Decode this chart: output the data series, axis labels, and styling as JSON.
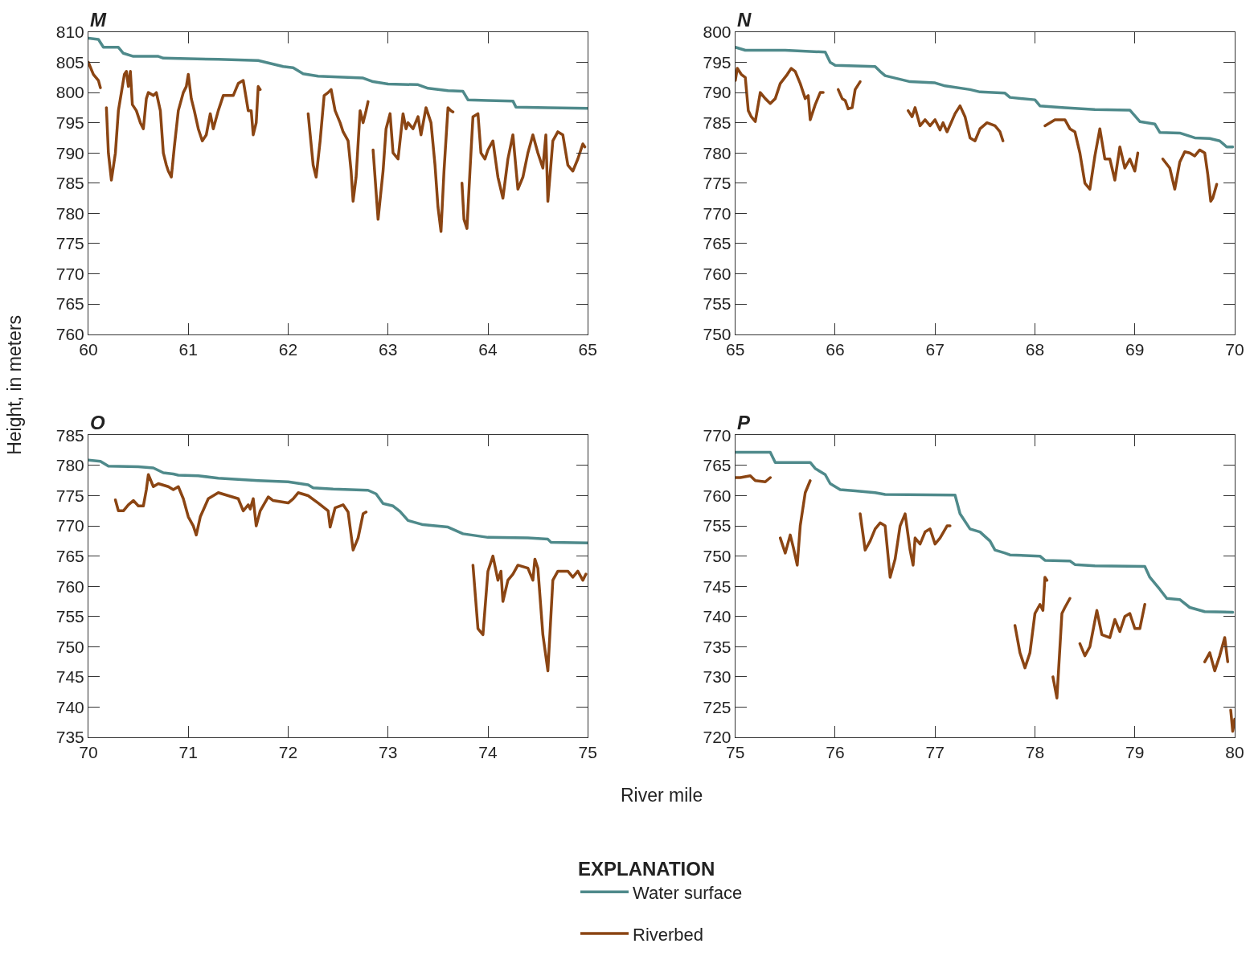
{
  "chart_data": [
    {
      "type": "line",
      "title": "M",
      "ylabel": "Height, in meters",
      "legend_title": "EXPLANATION",
      "legend": "bottom",
      "grid": false,
      "xlim": [
        60,
        65
      ],
      "xticks": [
        60,
        61,
        62,
        63,
        64,
        65
      ],
      "ylim": [
        760,
        810
      ],
      "yticks": [
        760,
        765,
        770,
        775,
        780,
        785,
        790,
        795,
        800,
        805,
        810
      ],
      "series": [
        {
          "name": "Water surface",
          "color": "#4f8a8b",
          "x": [
            60.0,
            60.1,
            60.15,
            60.3,
            60.35,
            60.45,
            60.7,
            60.75,
            61.0,
            61.3,
            61.7,
            61.8,
            61.95,
            62.05,
            62.15,
            62.3,
            62.6,
            62.75,
            62.85,
            63.0,
            63.3,
            63.4,
            63.6,
            63.75,
            63.8,
            64.0,
            64.25,
            64.28,
            64.6,
            65.0
          ],
          "values": [
            809,
            808.8,
            807.5,
            807.5,
            806.5,
            806,
            806,
            805.7,
            805.6,
            805.5,
            805.3,
            804.9,
            804.3,
            804.1,
            803.1,
            802.7,
            802.5,
            802.4,
            801.8,
            801.4,
            801.3,
            800.7,
            800.3,
            800.2,
            798.8,
            798.7,
            798.6,
            797.6,
            797.5,
            797.4
          ]
        },
        {
          "name": "Riverbed",
          "color": "#8b4513",
          "x": [
            60.0,
            60.05,
            60.1,
            60.12,
            60.15,
            60.18,
            60.2,
            60.23,
            60.27,
            60.3,
            60.33,
            60.36,
            60.38,
            60.4,
            60.42,
            60.44,
            60.48,
            60.52,
            60.55,
            60.58,
            60.6,
            60.65,
            60.68,
            60.72,
            60.75,
            60.78,
            60.8,
            60.83,
            60.86,
            60.9,
            60.95,
            60.98,
            61.0,
            61.03,
            61.06,
            61.1,
            61.14,
            61.18,
            61.22,
            61.25,
            61.3,
            61.35,
            61.45,
            61.5,
            61.55,
            61.6,
            61.63,
            61.65,
            61.68,
            61.7,
            61.72,
            62.0,
            62.2,
            62.25,
            62.28,
            62.32,
            62.36,
            62.4,
            62.43,
            62.47,
            62.52,
            62.55,
            62.6,
            62.63,
            62.65,
            62.68,
            62.72,
            62.75,
            62.78,
            62.8,
            62.83,
            62.85,
            62.9,
            62.95,
            62.98,
            63.02,
            63.05,
            63.1,
            63.15,
            63.18,
            63.2,
            63.25,
            63.3,
            63.33,
            63.38,
            63.43,
            63.47,
            63.5,
            63.53,
            63.56,
            63.6,
            63.63,
            63.65,
            63.7,
            63.74,
            63.76,
            63.79,
            63.82,
            63.85,
            63.9,
            63.93,
            63.97,
            64.0,
            64.05,
            64.1,
            64.15,
            64.2,
            64.25,
            64.3,
            64.35,
            64.4,
            64.45,
            64.5,
            64.55,
            64.58,
            64.6,
            64.65,
            64.7,
            64.75,
            64.8,
            64.85,
            64.9,
            64.95,
            64.97
          ],
          "values": [
            805,
            803,
            802,
            800.8,
            null,
            797.5,
            790,
            785.5,
            790,
            797,
            800,
            803,
            803.5,
            801,
            803.5,
            798,
            797,
            795,
            794,
            799,
            800,
            799.5,
            800,
            797,
            790,
            788,
            787,
            786,
            791,
            797,
            800,
            801,
            803,
            799,
            797,
            794,
            792,
            793,
            796.5,
            794,
            797,
            799.5,
            799.5,
            801.5,
            802,
            797,
            797,
            793,
            795,
            801,
            800.5,
            null,
            796.5,
            788,
            786,
            792,
            799.5,
            800,
            800.5,
            797,
            795,
            793.5,
            792,
            787,
            782,
            786,
            797,
            795,
            797,
            798.5,
            null,
            790.5,
            779,
            787,
            794,
            796.5,
            790,
            789,
            796.5,
            794,
            795,
            794,
            796,
            793,
            797.5,
            795,
            788,
            781,
            777,
            787,
            797.5,
            797,
            796.8,
            null,
            785,
            779,
            777.5,
            787,
            796,
            796.5,
            790,
            789,
            790.5,
            792,
            786,
            782.5,
            789,
            793,
            784,
            786,
            790,
            793,
            790,
            787.5,
            793,
            782,
            792,
            793.5,
            793,
            788,
            787,
            789,
            791.5,
            791
          ]
        }
      ]
    },
    {
      "type": "line",
      "title": "N",
      "grid": false,
      "xlim": [
        65,
        70
      ],
      "xticks": [
        65,
        66,
        67,
        68,
        69,
        70
      ],
      "ylim": [
        750,
        800
      ],
      "yticks": [
        750,
        755,
        760,
        765,
        770,
        775,
        780,
        785,
        790,
        795,
        800
      ],
      "series": [
        {
          "name": "Water surface",
          "color": "#4f8a8b",
          "x": [
            65.0,
            65.1,
            65.5,
            65.9,
            65.95,
            66.0,
            66.4,
            66.45,
            66.5,
            66.65,
            66.75,
            67.0,
            67.1,
            67.35,
            67.45,
            67.7,
            67.75,
            68.0,
            68.05,
            68.3,
            68.6,
            68.95,
            69.05,
            69.2,
            69.25,
            69.45,
            69.6,
            69.75,
            69.85,
            69.92,
            69.98
          ],
          "values": [
            797.5,
            797,
            797,
            796.7,
            795,
            794.5,
            794.3,
            793.5,
            792.8,
            792.2,
            791.8,
            791.6,
            791.1,
            790.5,
            790.1,
            789.9,
            789.2,
            788.8,
            787.8,
            787.5,
            787.2,
            787.1,
            785.2,
            784.8,
            783.4,
            783.3,
            782.5,
            782.4,
            782,
            781,
            781
          ]
        },
        {
          "name": "Riverbed",
          "color": "#8b4513",
          "x": [
            65.0,
            65.02,
            65.06,
            65.1,
            65.13,
            65.16,
            65.2,
            65.25,
            65.3,
            65.35,
            65.4,
            65.45,
            65.52,
            65.56,
            65.6,
            65.65,
            65.7,
            65.73,
            65.75,
            65.8,
            65.85,
            65.88,
            65.95,
            66.03,
            66.07,
            66.1,
            66.13,
            66.17,
            66.2,
            66.25,
            66.5,
            66.73,
            66.77,
            66.8,
            66.85,
            66.9,
            66.95,
            67.0,
            67.05,
            67.08,
            67.12,
            67.16,
            67.2,
            67.25,
            67.3,
            67.35,
            67.4,
            67.45,
            67.52,
            67.6,
            67.65,
            67.68,
            67.9,
            68.1,
            68.2,
            68.3,
            68.35,
            68.4,
            68.45,
            68.5,
            68.55,
            68.6,
            68.65,
            68.7,
            68.75,
            68.8,
            68.85,
            68.9,
            68.95,
            69.0,
            69.03,
            69.15,
            69.28,
            69.35,
            69.4,
            69.45,
            69.5,
            69.55,
            69.6,
            69.65,
            69.7,
            69.73,
            69.76,
            69.78,
            69.82
          ],
          "values": [
            792,
            794,
            793,
            792.5,
            787,
            786,
            785.2,
            790,
            789,
            788.2,
            789,
            791.5,
            793,
            794,
            793.5,
            791.5,
            789,
            789.5,
            785.5,
            788,
            790,
            790,
            null,
            790.5,
            789,
            788.7,
            787.3,
            787.5,
            790.5,
            791.8,
            null,
            787,
            786,
            787.5,
            784.5,
            785.5,
            784.5,
            785.5,
            783.8,
            785,
            783.5,
            785,
            786.5,
            787.8,
            786,
            782.5,
            782,
            784,
            785,
            784.5,
            783.5,
            782,
            null,
            784.5,
            785.5,
            785.5,
            784,
            783.5,
            780,
            775,
            774,
            779.5,
            784,
            779,
            779,
            775.5,
            781,
            777.5,
            779,
            777,
            780,
            null,
            779,
            777.5,
            774,
            778.5,
            780.2,
            780,
            779.5,
            780.5,
            780,
            776.5,
            772,
            772.5,
            774.8
          ]
        }
      ]
    },
    {
      "type": "line",
      "title": "O",
      "xlabel": "River mile",
      "grid": false,
      "xlim": [
        70,
        75
      ],
      "xticks": [
        70,
        71,
        72,
        73,
        74,
        75
      ],
      "ylim": [
        735,
        785
      ],
      "yticks": [
        735,
        740,
        745,
        750,
        755,
        760,
        765,
        770,
        775,
        780,
        785
      ],
      "series": [
        {
          "name": "Water surface",
          "color": "#4f8a8b",
          "x": [
            70.0,
            70.12,
            70.2,
            70.5,
            70.65,
            70.75,
            70.85,
            70.9,
            71.1,
            71.3,
            71.5,
            71.7,
            72.0,
            72.2,
            72.25,
            72.45,
            72.8,
            72.88,
            72.95,
            73.05,
            73.12,
            73.2,
            73.35,
            73.6,
            73.75,
            74.0,
            74.4,
            74.6,
            74.63,
            75.0
          ],
          "values": [
            780.9,
            780.7,
            779.9,
            779.8,
            779.6,
            778.8,
            778.6,
            778.4,
            778.3,
            777.9,
            777.7,
            777.5,
            777.3,
            776.8,
            776.3,
            776.1,
            775.9,
            775.3,
            773.7,
            773.3,
            772.4,
            770.9,
            770.2,
            769.8,
            768.7,
            768.1,
            768,
            767.8,
            767.3,
            767.2
          ]
        },
        {
          "name": "Riverbed",
          "color": "#8b4513",
          "x": [
            70.27,
            70.3,
            70.35,
            70.4,
            70.45,
            70.5,
            70.55,
            70.58,
            70.6,
            70.65,
            70.7,
            70.8,
            70.85,
            70.9,
            70.95,
            71.0,
            71.05,
            71.08,
            71.12,
            71.2,
            71.3,
            71.4,
            71.5,
            71.55,
            71.6,
            71.62,
            71.65,
            71.68,
            71.72,
            71.8,
            71.85,
            72.0,
            72.05,
            72.1,
            72.2,
            72.3,
            72.4,
            72.42,
            72.47,
            72.55,
            72.6,
            72.65,
            72.7,
            72.75,
            72.78,
            73.3,
            73.85,
            73.9,
            73.95,
            74.0,
            74.05,
            74.1,
            74.13,
            74.15,
            74.2,
            74.25,
            74.3,
            74.4,
            74.45,
            74.47,
            74.5,
            74.55,
            74.6,
            74.65,
            74.7,
            74.8,
            74.85,
            74.9,
            74.95,
            74.98
          ],
          "values": [
            774.3,
            772.5,
            772.5,
            773.5,
            774.2,
            773.3,
            773.3,
            776,
            778.5,
            776.5,
            777,
            776.5,
            776,
            776.5,
            774.5,
            771.5,
            770,
            768.5,
            771.5,
            774.5,
            775.5,
            775,
            774.5,
            772.5,
            773.5,
            772.8,
            774.5,
            770,
            772.5,
            774.8,
            774.2,
            773.8,
            774.5,
            775.5,
            775,
            773.8,
            772.5,
            769.8,
            773,
            773.5,
            772.3,
            766,
            768,
            772,
            772.3,
            null,
            763.5,
            753,
            752,
            762.5,
            765,
            761,
            762.5,
            757.5,
            761,
            762,
            763.5,
            763,
            761,
            764.5,
            763,
            752,
            746,
            761,
            762.5,
            762.5,
            761.5,
            762.5,
            761,
            762
          ]
        }
      ]
    },
    {
      "type": "line",
      "title": "P",
      "grid": false,
      "xlim": [
        75,
        80
      ],
      "xticks": [
        75,
        76,
        77,
        78,
        79,
        80
      ],
      "ylim": [
        720,
        770
      ],
      "yticks": [
        720,
        725,
        730,
        735,
        740,
        745,
        750,
        755,
        760,
        765,
        770
      ],
      "series": [
        {
          "name": "Water surface",
          "color": "#4f8a8b",
          "x": [
            75.0,
            75.35,
            75.4,
            75.75,
            75.8,
            75.9,
            75.95,
            76.05,
            76.2,
            76.4,
            76.5,
            77.2,
            77.25,
            77.35,
            77.45,
            77.55,
            77.6,
            77.7,
            77.75,
            78.05,
            78.1,
            78.35,
            78.4,
            78.6,
            79.1,
            79.15,
            79.25,
            79.32,
            79.45,
            79.55,
            79.7,
            79.98
          ],
          "values": [
            767.2,
            767.2,
            765.5,
            765.5,
            764.5,
            763.5,
            762,
            761,
            760.8,
            760.5,
            760.2,
            760.1,
            757,
            754.5,
            754,
            752.5,
            751,
            750.5,
            750.2,
            750,
            749.3,
            749.2,
            748.6,
            748.4,
            748.3,
            746.5,
            744.5,
            743,
            742.8,
            741.5,
            740.8,
            740.7
          ]
        },
        {
          "name": "Riverbed",
          "color": "#8b4513",
          "x": [
            75.0,
            75.05,
            75.15,
            75.2,
            75.3,
            75.35,
            75.4,
            75.45,
            75.5,
            75.55,
            75.58,
            75.62,
            75.65,
            75.7,
            75.75,
            76.0,
            76.25,
            76.3,
            76.35,
            76.4,
            76.45,
            76.5,
            76.55,
            76.6,
            76.65,
            76.7,
            76.75,
            76.78,
            76.8,
            76.85,
            76.9,
            76.95,
            77.0,
            77.05,
            77.12,
            77.15,
            77.5,
            77.8,
            77.85,
            77.9,
            77.95,
            78.0,
            78.05,
            78.08,
            78.1,
            78.12,
            78.15,
            78.18,
            78.22,
            78.27,
            78.3,
            78.35,
            78.4,
            78.45,
            78.5,
            78.55,
            78.62,
            78.67,
            78.75,
            78.8,
            78.85,
            78.9,
            78.95,
            79.0,
            79.05,
            79.1,
            79.4,
            79.7,
            79.75,
            79.8,
            79.85,
            79.9,
            79.93,
            79.95,
            79.96,
            79.98,
            80.0
          ],
          "values": [
            763,
            763,
            763.3,
            762.5,
            762.3,
            763,
            null,
            753,
            750.5,
            753.5,
            751.5,
            748.5,
            755,
            760.5,
            762.5,
            null,
            757,
            751,
            752.5,
            754.5,
            755.5,
            755,
            746.5,
            749.5,
            755,
            757,
            751,
            748.5,
            753,
            752,
            754,
            754.5,
            752,
            753,
            755,
            755,
            null,
            738.5,
            734,
            731.5,
            734,
            740.5,
            742,
            741,
            746.5,
            746,
            null,
            730,
            726.5,
            740.5,
            741.5,
            743,
            null,
            735.5,
            733.5,
            735,
            741,
            737,
            736.5,
            739.5,
            737.5,
            740,
            740.5,
            738,
            738,
            742,
            null,
            732.5,
            734,
            731,
            733.5,
            736.5,
            732.5,
            null,
            724.5,
            721,
            723
          ]
        }
      ]
    }
  ]
}
